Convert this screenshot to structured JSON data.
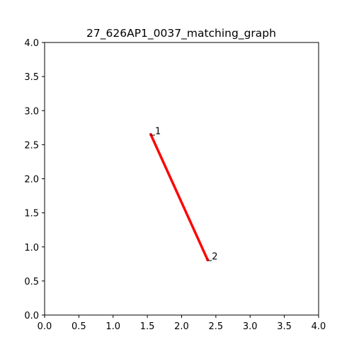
{
  "chart_data": {
    "type": "line",
    "title": "27_626AP1_0037_matching_graph",
    "xlabel": "",
    "ylabel": "",
    "xlim": [
      0.0,
      4.0
    ],
    "ylim": [
      0.0,
      4.0
    ],
    "xticks": [
      "0.0",
      "0.5",
      "1.0",
      "1.5",
      "2.0",
      "2.5",
      "3.0",
      "3.5",
      "4.0"
    ],
    "yticks": [
      "0.0",
      "0.5",
      "1.0",
      "1.5",
      "2.0",
      "2.5",
      "3.0",
      "3.5",
      "4.0"
    ],
    "grid": false,
    "nodes": [
      {
        "label": "1",
        "x": 1.55,
        "y": 2.65
      },
      {
        "label": "2",
        "x": 2.38,
        "y": 0.81
      }
    ],
    "edges": [
      {
        "from": 0,
        "to": 1,
        "color": "#ff0000"
      }
    ]
  }
}
